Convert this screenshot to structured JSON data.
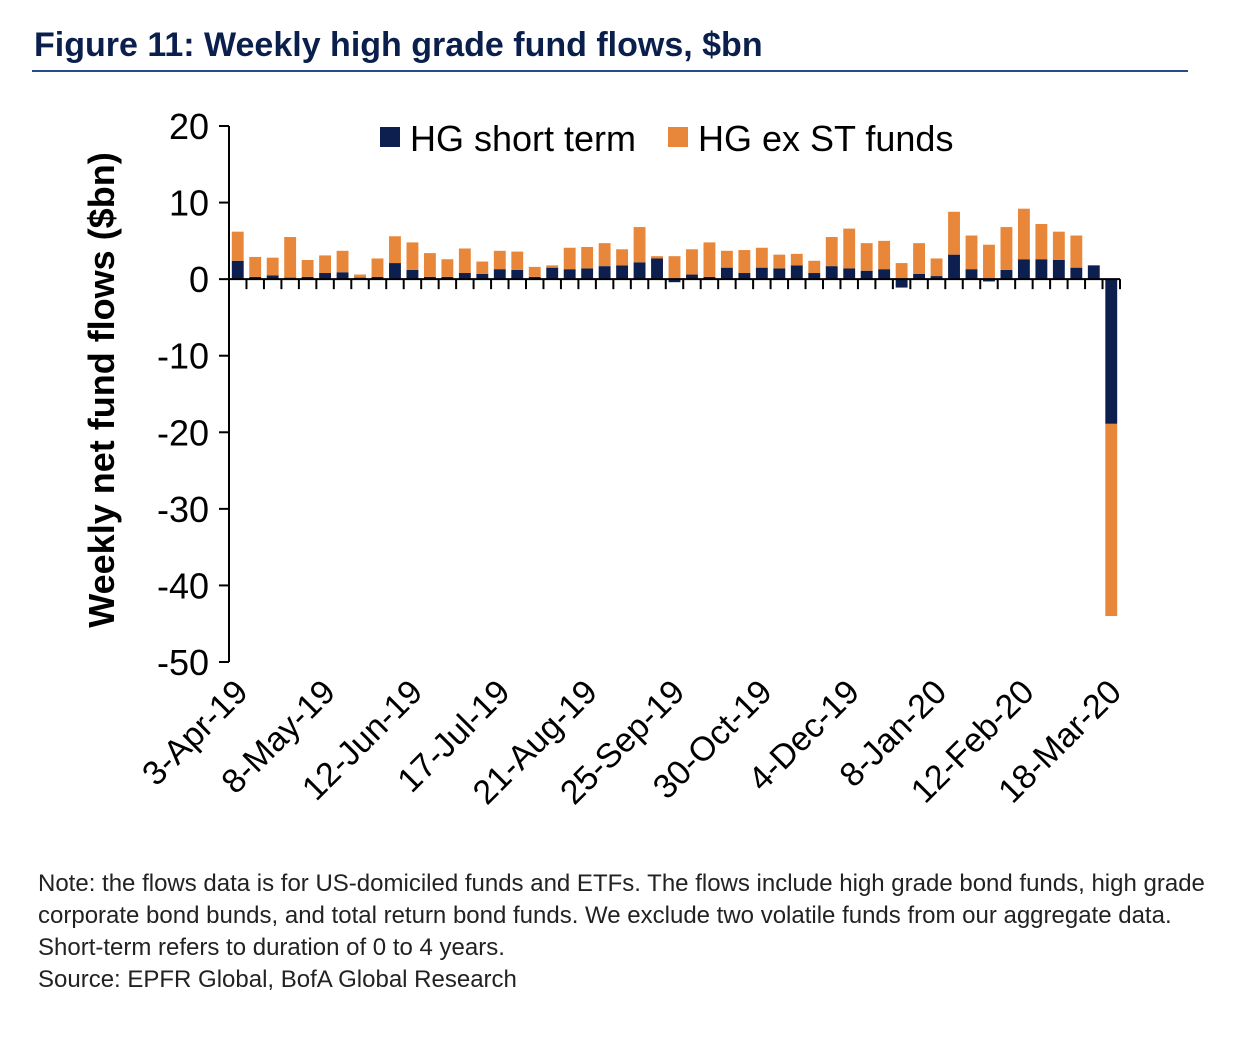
{
  "figure": {
    "title": "Figure 11: Weekly high grade fund flows, $bn"
  },
  "chart_data": {
    "type": "bar",
    "stacked": true,
    "title": "Figure 11: Weekly high grade fund flows, $bn",
    "ylabel": "Weekly net fund flows ($bn)",
    "xlabel": "",
    "ylim": [
      -50,
      20
    ],
    "yticks": [
      20,
      10,
      0,
      -10,
      -20,
      -30,
      -40,
      -50
    ],
    "legend_position": "top",
    "x_tick_labels": [
      "3-Apr-19",
      "8-May-19",
      "12-Jun-19",
      "17-Jul-19",
      "21-Aug-19",
      "25-Sep-19",
      "30-Oct-19",
      "4-Dec-19",
      "8-Jan-20",
      "12-Feb-20",
      "18-Mar-20"
    ],
    "x_tick_every": 5,
    "categories": [
      "3-Apr-19",
      "10-Apr-19",
      "17-Apr-19",
      "24-Apr-19",
      "1-May-19",
      "8-May-19",
      "15-May-19",
      "22-May-19",
      "29-May-19",
      "5-Jun-19",
      "12-Jun-19",
      "19-Jun-19",
      "26-Jun-19",
      "3-Jul-19",
      "10-Jul-19",
      "17-Jul-19",
      "24-Jul-19",
      "31-Jul-19",
      "7-Aug-19",
      "14-Aug-19",
      "21-Aug-19",
      "28-Aug-19",
      "4-Sep-19",
      "11-Sep-19",
      "18-Sep-19",
      "25-Sep-19",
      "2-Oct-19",
      "9-Oct-19",
      "16-Oct-19",
      "23-Oct-19",
      "30-Oct-19",
      "6-Nov-19",
      "13-Nov-19",
      "20-Nov-19",
      "27-Nov-19",
      "4-Dec-19",
      "11-Dec-19",
      "18-Dec-19",
      "25-Dec-19",
      "1-Jan-20",
      "8-Jan-20",
      "15-Jan-20",
      "22-Jan-20",
      "29-Jan-20",
      "5-Feb-20",
      "12-Feb-20",
      "19-Feb-20",
      "26-Feb-20",
      "4-Mar-20",
      "11-Mar-20",
      "18-Mar-20"
    ],
    "series": [
      {
        "name": "HG short term",
        "color": "#0d1f4f",
        "values": [
          2.4,
          0.3,
          0.5,
          0.2,
          0.3,
          0.8,
          0.9,
          0.2,
          0.3,
          2.1,
          1.2,
          0.3,
          0.3,
          0.8,
          0.7,
          1.3,
          1.2,
          0.3,
          1.5,
          1.3,
          1.4,
          1.7,
          1.8,
          2.2,
          2.7,
          -0.4,
          0.6,
          0.3,
          1.5,
          0.8,
          1.5,
          1.4,
          1.8,
          0.8,
          1.7,
          1.4,
          1.1,
          1.3,
          -1.1,
          0.7,
          0.4,
          3.2,
          1.3,
          -0.3,
          1.2,
          2.6,
          2.6,
          2.5,
          1.5,
          1.8,
          -18.9
        ]
      },
      {
        "name": "HG ex ST funds",
        "color": "#e8873a",
        "values": [
          3.8,
          2.6,
          2.3,
          5.3,
          2.2,
          2.3,
          2.8,
          0.4,
          2.4,
          3.5,
          3.6,
          3.1,
          2.3,
          3.2,
          1.6,
          2.4,
          2.4,
          1.3,
          0.3,
          2.8,
          2.8,
          3.0,
          2.1,
          4.6,
          0.3,
          3.0,
          3.3,
          4.5,
          2.2,
          3.0,
          2.6,
          1.8,
          1.5,
          1.6,
          3.8,
          5.2,
          3.6,
          3.7,
          2.1,
          4.0,
          2.3,
          5.6,
          4.4,
          4.5,
          5.6,
          6.6,
          4.6,
          3.7,
          4.2,
          0.0,
          -25.1
        ]
      }
    ]
  },
  "notes": {
    "note": "Note: the flows data is for US-domiciled funds and ETFs. The flows include high grade bond funds, high grade corporate bond bunds, and total return bond funds. We exclude two volatile funds from our aggregate data. Short-term refers to duration of 0 to 4 years.",
    "source": "Source: EPFR Global, BofA Global Research"
  }
}
